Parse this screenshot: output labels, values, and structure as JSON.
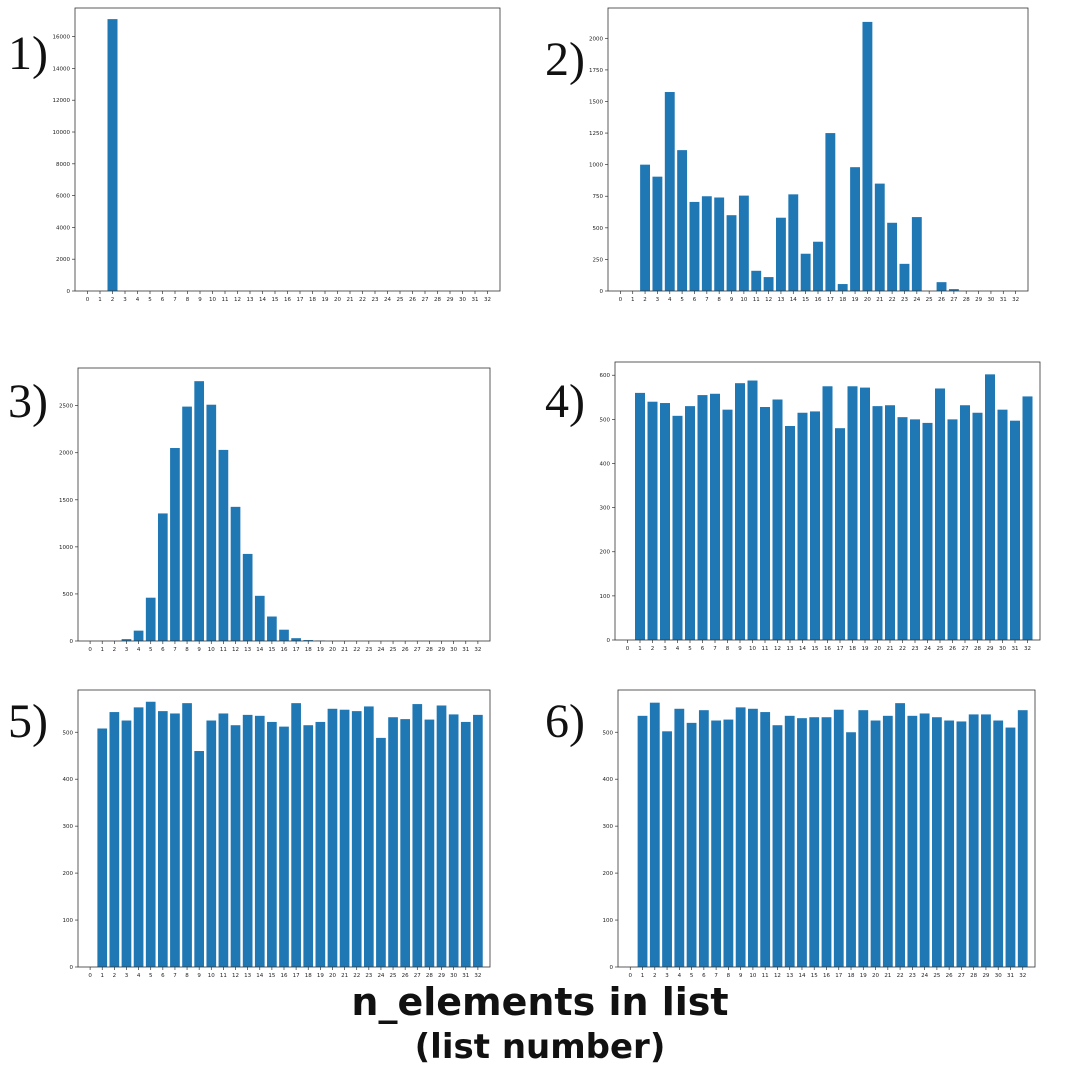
{
  "footer": {
    "line1": "n_elements in list",
    "line2": "(list number)"
  },
  "style": {
    "bar_color": "#1f77b4",
    "axis_color": "#333333"
  },
  "chart_data": [
    {
      "label": "1)",
      "type": "bar",
      "categories": [
        "0",
        "1",
        "2",
        "3",
        "4",
        "5",
        "6",
        "7",
        "8",
        "9",
        "10",
        "11",
        "12",
        "13",
        "14",
        "15",
        "16",
        "17",
        "18",
        "19",
        "20",
        "21",
        "22",
        "23",
        "24",
        "25",
        "26",
        "27",
        "28",
        "29",
        "30",
        "31",
        "32"
      ],
      "values": [
        0,
        0,
        17100,
        0,
        0,
        0,
        0,
        0,
        0,
        0,
        0,
        0,
        0,
        0,
        0,
        0,
        0,
        0,
        0,
        0,
        0,
        0,
        0,
        0,
        0,
        0,
        0,
        0,
        0,
        0,
        0,
        0,
        0
      ],
      "ylim": [
        0,
        17800
      ],
      "yticks": [
        "0",
        "2000",
        "4000",
        "6000",
        "8000",
        "10000",
        "12000",
        "14000",
        "16000"
      ],
      "ytick_values": [
        0,
        2000,
        4000,
        6000,
        8000,
        10000,
        12000,
        14000,
        16000
      ],
      "grid": false
    },
    {
      "label": "2)",
      "type": "bar",
      "categories": [
        "0",
        "1",
        "2",
        "3",
        "4",
        "5",
        "6",
        "7",
        "8",
        "9",
        "10",
        "11",
        "12",
        "13",
        "14",
        "15",
        "16",
        "17",
        "18",
        "19",
        "20",
        "21",
        "22",
        "23",
        "24",
        "25",
        "26",
        "27",
        "28",
        "29",
        "30",
        "31",
        "32"
      ],
      "values": [
        0,
        0,
        1000,
        905,
        1575,
        1115,
        705,
        750,
        740,
        600,
        755,
        160,
        110,
        580,
        765,
        295,
        390,
        1250,
        55,
        980,
        2130,
        850,
        540,
        215,
        585,
        0,
        70,
        15,
        0,
        0,
        0,
        0,
        0
      ],
      "ylim": [
        0,
        2240
      ],
      "yticks": [
        "0",
        "250",
        "500",
        "750",
        "1000",
        "1250",
        "1500",
        "1750",
        "2000"
      ],
      "ytick_values": [
        0,
        250,
        500,
        750,
        1000,
        1250,
        1500,
        1750,
        2000
      ],
      "grid": false
    },
    {
      "label": "3)",
      "type": "bar",
      "categories": [
        "0",
        "1",
        "2",
        "3",
        "4",
        "5",
        "6",
        "7",
        "8",
        "9",
        "10",
        "11",
        "12",
        "13",
        "14",
        "15",
        "16",
        "17",
        "18",
        "19",
        "20",
        "21",
        "22",
        "23",
        "24",
        "25",
        "26",
        "27",
        "28",
        "29",
        "30",
        "31",
        "32"
      ],
      "values": [
        0,
        0,
        0,
        20,
        110,
        460,
        1355,
        2050,
        2490,
        2760,
        2510,
        2030,
        1425,
        925,
        480,
        260,
        120,
        30,
        10,
        5,
        0,
        0,
        0,
        0,
        0,
        0,
        0,
        0,
        0,
        0,
        0,
        0,
        0
      ],
      "ylim": [
        0,
        2900
      ],
      "yticks": [
        "0",
        "500",
        "1000",
        "1500",
        "2000",
        "2500"
      ],
      "ytick_values": [
        0,
        500,
        1000,
        1500,
        2000,
        2500
      ],
      "grid": false
    },
    {
      "label": "4)",
      "type": "bar",
      "categories": [
        "0",
        "1",
        "2",
        "3",
        "4",
        "5",
        "6",
        "7",
        "8",
        "9",
        "10",
        "11",
        "12",
        "13",
        "14",
        "15",
        "16",
        "17",
        "18",
        "19",
        "20",
        "21",
        "22",
        "23",
        "24",
        "25",
        "26",
        "27",
        "28",
        "29",
        "30",
        "31",
        "32"
      ],
      "values": [
        0,
        560,
        540,
        537,
        508,
        530,
        555,
        558,
        522,
        582,
        588,
        528,
        545,
        485,
        515,
        518,
        575,
        480,
        575,
        572,
        530,
        532,
        505,
        500,
        492,
        570,
        500,
        532,
        515,
        602,
        522,
        497,
        552
      ],
      "ylim": [
        0,
        630
      ],
      "yticks": [
        "0",
        "100",
        "200",
        "300",
        "400",
        "500",
        "600"
      ],
      "ytick_values": [
        0,
        100,
        200,
        300,
        400,
        500,
        600
      ],
      "grid": false
    },
    {
      "label": "5)",
      "type": "bar",
      "categories": [
        "0",
        "1",
        "2",
        "3",
        "4",
        "5",
        "6",
        "7",
        "8",
        "9",
        "10",
        "11",
        "12",
        "13",
        "14",
        "15",
        "16",
        "17",
        "18",
        "19",
        "20",
        "21",
        "22",
        "23",
        "24",
        "25",
        "26",
        "27",
        "28",
        "29",
        "30",
        "31",
        "32"
      ],
      "values": [
        0,
        508,
        543,
        525,
        553,
        565,
        545,
        540,
        562,
        460,
        525,
        540,
        515,
        537,
        535,
        522,
        512,
        562,
        515,
        522,
        550,
        548,
        545,
        555,
        488,
        532,
        528,
        560,
        527,
        557,
        538,
        522,
        537
      ],
      "ylim": [
        0,
        590
      ],
      "yticks": [
        "0",
        "100",
        "200",
        "300",
        "400",
        "500"
      ],
      "ytick_values": [
        0,
        100,
        200,
        300,
        400,
        500
      ],
      "grid": false
    },
    {
      "label": "6)",
      "type": "bar",
      "categories": [
        "0",
        "1",
        "2",
        "3",
        "4",
        "5",
        "6",
        "7",
        "8",
        "9",
        "10",
        "11",
        "12",
        "13",
        "14",
        "15",
        "16",
        "17",
        "18",
        "19",
        "20",
        "21",
        "22",
        "23",
        "24",
        "25",
        "26",
        "27",
        "28",
        "29",
        "30",
        "31",
        "32"
      ],
      "values": [
        0,
        535,
        563,
        502,
        550,
        520,
        547,
        525,
        527,
        553,
        550,
        543,
        515,
        535,
        530,
        532,
        532,
        548,
        500,
        547,
        525,
        535,
        562,
        535,
        540,
        532,
        525,
        523,
        538,
        538,
        525,
        510,
        547
      ],
      "ylim": [
        0,
        590
      ],
      "yticks": [
        "0",
        "100",
        "200",
        "300",
        "400",
        "500"
      ],
      "ytick_values": [
        0,
        100,
        200,
        300,
        400,
        500
      ],
      "grid": false
    }
  ]
}
